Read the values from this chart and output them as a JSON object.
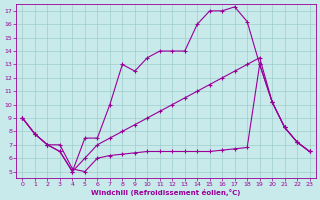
{
  "bg_color": "#c8eaea",
  "grid_color": "#a0cccc",
  "line_color": "#990099",
  "xlim": [
    -0.5,
    23.5
  ],
  "ylim": [
    4.5,
    17.5
  ],
  "xticks": [
    0,
    1,
    2,
    3,
    4,
    5,
    6,
    7,
    8,
    9,
    10,
    11,
    12,
    13,
    14,
    15,
    16,
    17,
    18,
    19,
    20,
    21,
    22,
    23
  ],
  "yticks": [
    5,
    6,
    7,
    8,
    9,
    10,
    11,
    12,
    13,
    14,
    15,
    16,
    17
  ],
  "xlabel": "Windchill (Refroidissement éolien,°C)",
  "curve_upper_x": [
    0,
    1,
    2,
    3,
    4,
    5,
    6,
    7,
    8,
    9,
    10,
    11,
    12,
    13,
    14,
    15,
    16,
    17,
    18,
    19,
    20,
    21,
    22,
    23
  ],
  "curve_upper_y": [
    9,
    7.8,
    7,
    6.5,
    5,
    7.5,
    7.5,
    10,
    13,
    12.5,
    13.5,
    14,
    14,
    14,
    16,
    17,
    17,
    17.3,
    16.2,
    13,
    10.2,
    8.3,
    7.2,
    6.5
  ],
  "curve_mid_x": [
    0,
    1,
    2,
    3,
    4,
    5,
    6,
    7,
    8,
    9,
    10,
    11,
    12,
    13,
    14,
    15,
    16,
    17,
    18,
    19,
    20,
    21,
    22,
    23
  ],
  "curve_mid_y": [
    9,
    7.8,
    7,
    6.5,
    5,
    6,
    7,
    7.5,
    8,
    8.5,
    9,
    9.5,
    10,
    10.5,
    11,
    11.5,
    12,
    12.5,
    13,
    13.5,
    10.2,
    8.3,
    7.2,
    6.5
  ],
  "curve_lower_x": [
    0,
    1,
    2,
    3,
    4,
    5,
    6,
    7,
    8,
    9,
    10,
    11,
    12,
    13,
    14,
    15,
    16,
    17,
    18,
    19,
    20,
    21,
    22,
    23
  ],
  "curve_lower_y": [
    9,
    7.8,
    7,
    7,
    5.2,
    5,
    6,
    6.2,
    6.3,
    6.4,
    6.5,
    6.5,
    6.5,
    6.5,
    6.5,
    6.5,
    6.6,
    6.7,
    6.8,
    13,
    10.2,
    8.3,
    7.2,
    6.5
  ]
}
